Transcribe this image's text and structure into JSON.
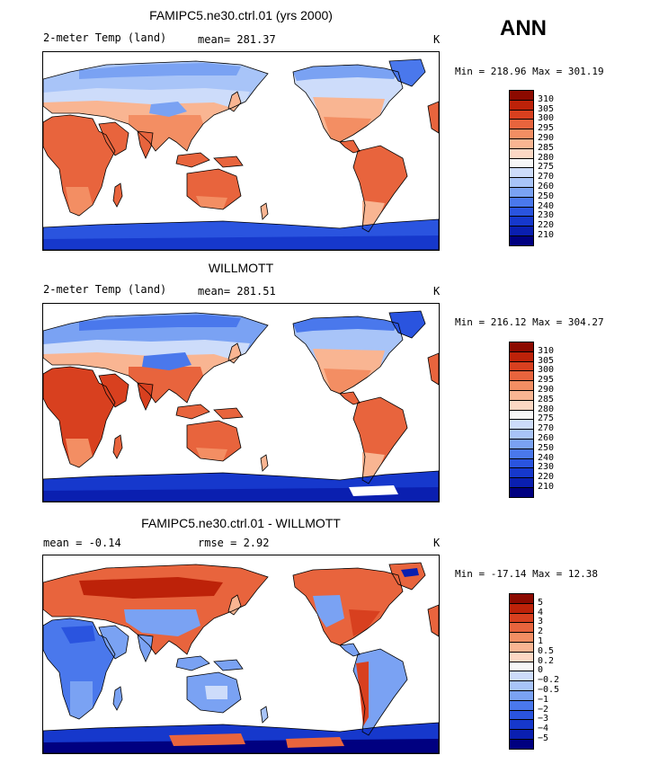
{
  "season": "ANN",
  "palette_temp": [
    "#000080",
    "#0a1fb0",
    "#1638cc",
    "#2a54df",
    "#4a78ec",
    "#7aa2f3",
    "#a8c4f8",
    "#cddcfa",
    "#f7f7f7",
    "#fcd8c4",
    "#f9b592",
    "#f38e63",
    "#e8643d",
    "#d8401f",
    "#bd2209",
    "#8c0a00"
  ],
  "panels": [
    {
      "title": "FAMIPC5.ne30.ctrl.01 (yrs 2000)",
      "variable": "2-meter Temp (land)",
      "stat1": "mean= 281.37",
      "stat2": "",
      "units": "K",
      "minmax": "Min = 218.96 Max = 301.19",
      "colorbar_labels": [
        "310",
        "305",
        "300",
        "295",
        "290",
        "285",
        "280",
        "275",
        "270",
        "260",
        "250",
        "240",
        "230",
        "220",
        "210"
      ],
      "style": "model"
    },
    {
      "title": "WILLMOTT",
      "variable": "2-meter Temp (land)",
      "stat1": "mean= 281.51",
      "stat2": "",
      "units": "K",
      "minmax": "Min = 216.12 Max = 304.27",
      "colorbar_labels": [
        "310",
        "305",
        "300",
        "295",
        "290",
        "285",
        "280",
        "275",
        "270",
        "260",
        "250",
        "240",
        "230",
        "220",
        "210"
      ],
      "style": "obs"
    },
    {
      "title": "FAMIPC5.ne30.ctrl.01 - WILLMOTT",
      "variable": "",
      "stat1": "mean =   -0.14",
      "stat2": "rmse =    2.92",
      "units": "K",
      "minmax": "Min = -17.14 Max =  12.38",
      "colorbar_labels": [
        "5",
        "4",
        "3",
        "2",
        "1",
        "0.5",
        "0.2",
        "0",
        "-0.2",
        "-0.5",
        "-1",
        "-2",
        "-3",
        "-4",
        "-5"
      ],
      "style": "diff"
    }
  ]
}
